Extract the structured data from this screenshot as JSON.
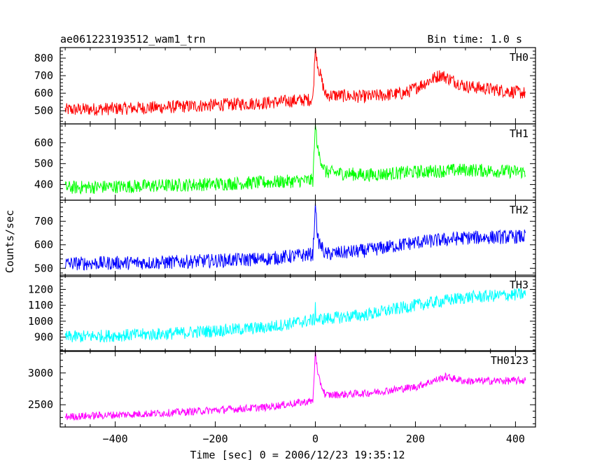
{
  "header": {
    "title": "ae061223193512_wam1_trn",
    "bin_time": "Bin time: 1.0 s"
  },
  "chart_data": {
    "type": "line",
    "xlabel": "Time [sec] 0 = 2006/12/23 19:35:12",
    "ylabel": "Counts/sec",
    "xlim": [
      -510,
      440
    ],
    "x_ticks": [
      -400,
      -200,
      0,
      200,
      400
    ],
    "x_tick_labels": [
      "−400",
      "−200",
      "0",
      "200",
      "400"
    ],
    "x_range": [
      -500,
      420
    ],
    "panels": [
      {
        "name": "TH0",
        "color": "#ff0000",
        "ylim": [
          425,
          860
        ],
        "yticks": [
          500,
          600,
          700,
          800
        ],
        "noise": 75,
        "spike_peak": 860,
        "profile": [
          [
            -500,
            505
          ],
          [
            -300,
            520
          ],
          [
            -100,
            545
          ],
          [
            -5,
            565
          ],
          [
            0,
            860
          ],
          [
            5,
            760
          ],
          [
            20,
            590
          ],
          [
            100,
            580
          ],
          [
            180,
            600
          ],
          [
            250,
            705
          ],
          [
            300,
            640
          ],
          [
            420,
            600
          ]
        ]
      },
      {
        "name": "TH1",
        "color": "#00ff00",
        "ylim": [
          325,
          690
        ],
        "yticks": [
          400,
          500,
          600
        ],
        "noise": 65,
        "spike_peak": 690,
        "profile": [
          [
            -500,
            385
          ],
          [
            -300,
            395
          ],
          [
            -100,
            410
          ],
          [
            -5,
            420
          ],
          [
            0,
            690
          ],
          [
            5,
            560
          ],
          [
            20,
            460
          ],
          [
            100,
            445
          ],
          [
            200,
            460
          ],
          [
            300,
            470
          ],
          [
            420,
            460
          ]
        ]
      },
      {
        "name": "TH2",
        "color": "#0000ff",
        "ylim": [
          465,
          790
        ],
        "yticks": [
          500,
          600,
          700
        ],
        "noise": 60,
        "spike_peak": 780,
        "profile": [
          [
            -500,
            520
          ],
          [
            -300,
            525
          ],
          [
            -100,
            540
          ],
          [
            -5,
            560
          ],
          [
            0,
            770
          ],
          [
            5,
            620
          ],
          [
            20,
            560
          ],
          [
            100,
            575
          ],
          [
            200,
            610
          ],
          [
            300,
            630
          ],
          [
            420,
            635
          ]
        ]
      },
      {
        "name": "TH3",
        "color": "#00ffff",
        "ylim": [
          810,
          1290
        ],
        "yticks": [
          900,
          1000,
          1100,
          1200
        ],
        "noise": 80,
        "spike_peak": 1120,
        "profile": [
          [
            -500,
            900
          ],
          [
            -300,
            920
          ],
          [
            -100,
            960
          ],
          [
            0,
            1010
          ],
          [
            100,
            1040
          ],
          [
            200,
            1100
          ],
          [
            300,
            1150
          ],
          [
            420,
            1170
          ]
        ]
      },
      {
        "name": "TH0123",
        "color": "#ff00ff",
        "ylim": [
          2150,
          3350
        ],
        "yticks": [
          2500,
          3000
        ],
        "noise": 120,
        "spike_peak": 3350,
        "profile": [
          [
            -500,
            2310
          ],
          [
            -300,
            2370
          ],
          [
            -100,
            2460
          ],
          [
            -5,
            2560
          ],
          [
            0,
            3350
          ],
          [
            5,
            2950
          ],
          [
            20,
            2650
          ],
          [
            100,
            2680
          ],
          [
            200,
            2780
          ],
          [
            260,
            2940
          ],
          [
            300,
            2870
          ],
          [
            420,
            2880
          ]
        ]
      }
    ]
  }
}
